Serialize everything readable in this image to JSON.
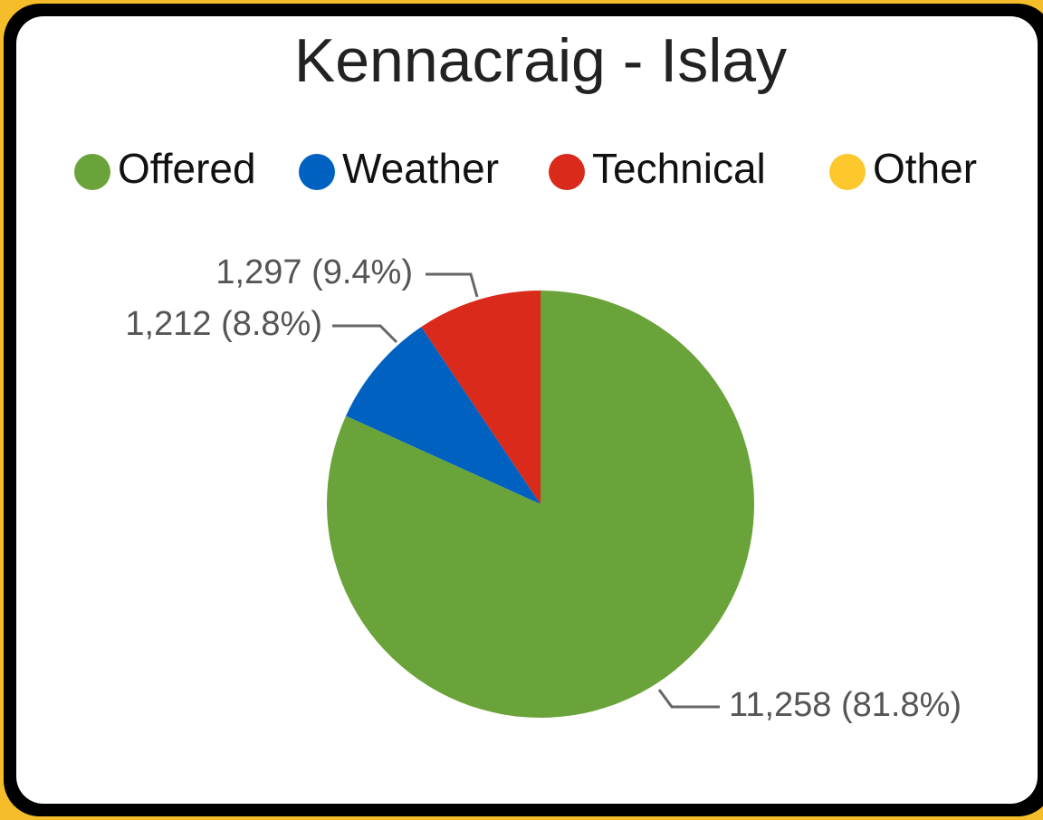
{
  "chart_data": {
    "type": "pie",
    "title": "Kennacraig - Islay",
    "categories": [
      "Offered",
      "Weather",
      "Technical",
      "Other"
    ],
    "values": [
      11258,
      1212,
      1297,
      0
    ],
    "value_labels": [
      "11,258 (81.8%)",
      "1,212 (8.8%)",
      "1,297 (9.4%)",
      null
    ],
    "colors": [
      "#6aa339",
      "#0061c0",
      "#da2a1c",
      "#fec72b"
    ],
    "legend": "top"
  }
}
